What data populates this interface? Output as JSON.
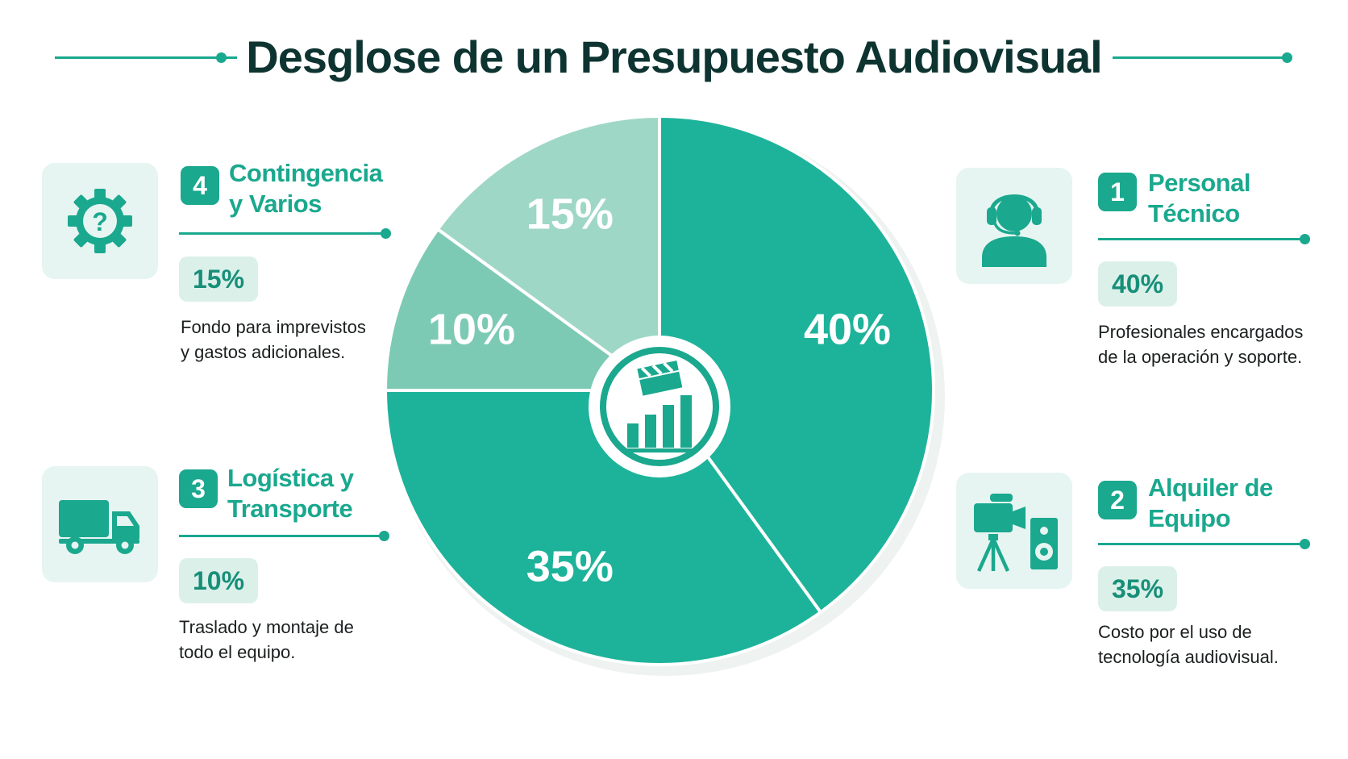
{
  "title": "Desglose de un Presupuesto Audiovisual",
  "colors": {
    "accent": "#1aa88e",
    "slice_main": "#1db39a",
    "slice_logistics": "#7dcab4",
    "slice_contingency": "#9fd7c6",
    "tile_bg": "#e6f5f1"
  },
  "chart_data": {
    "type": "pie",
    "title": "Desglose de un Presupuesto Audiovisual",
    "slices": [
      {
        "label": "Personal Técnico",
        "value": 40,
        "display": "40%",
        "color": "#1db39a"
      },
      {
        "label": "Alquiler de Equipo",
        "value": 35,
        "display": "35%",
        "color": "#1db39a"
      },
      {
        "label": "Logística y Transporte",
        "value": 10,
        "display": "10%",
        "color": "#7dcab4"
      },
      {
        "label": "Contingencia y Varios",
        "value": 15,
        "display": "15%",
        "color": "#9fd7c6"
      }
    ],
    "center_icon": "clapperboard-bar-chart-icon",
    "legend": "none"
  },
  "cards": [
    {
      "number": "1",
      "title": "Personal Técnico",
      "percent": "40%",
      "description": "Profesionales encargados de la operación y soporte.",
      "icon": "headset-person-icon"
    },
    {
      "number": "2",
      "title": "Alquiler de Equipo",
      "percent": "35%",
      "description": "Costo por el uso de tecnología audiovisual.",
      "icon": "video-camera-speaker-icon"
    },
    {
      "number": "3",
      "title": "Logística y Transporte",
      "percent": "10%",
      "description": "Traslado y montaje de todo el equipo.",
      "icon": "truck-icon"
    },
    {
      "number": "4",
      "title": "Contingencia y Varios",
      "percent": "15%",
      "description": "Fondo para imprevistos y gastos adicionales.",
      "icon": "gear-question-icon"
    }
  ]
}
